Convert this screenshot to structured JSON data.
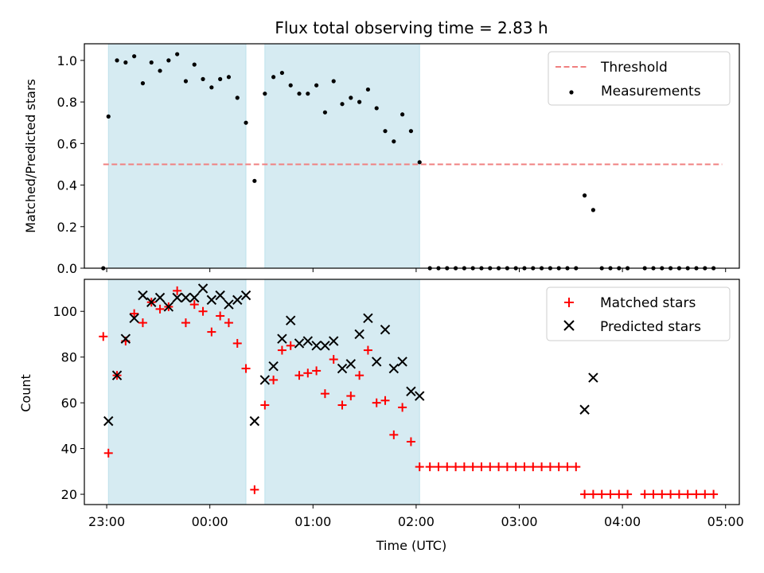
{
  "chart_data": [
    {
      "type": "scatter",
      "title": "Flux total observing time = 2.83 h",
      "xlabel": "",
      "ylabel": "Matched/Predicted stars",
      "ylim": [
        0,
        1.08
      ],
      "xlim": [
        "22:47",
        "05:08"
      ],
      "grid": false,
      "legend_position": "top-right",
      "colors": {
        "threshold": "#f08080",
        "measurements": "#000000",
        "shade": "#add8e6"
      },
      "shaded_intervals": [
        [
          "23:01",
          "00:21"
        ],
        [
          "00:32",
          "02:02"
        ]
      ],
      "threshold": {
        "name": "Threshold",
        "y": 0.5,
        "x_range": [
          "22:58",
          "04:58"
        ]
      },
      "series": [
        {
          "name": "Measurements",
          "points": [
            [
              "22:58",
              0.0
            ],
            [
              "23:01",
              0.73
            ],
            [
              "23:06",
              1.0
            ],
            [
              "23:11",
              0.99
            ],
            [
              "23:16",
              1.02
            ],
            [
              "23:21",
              0.89
            ],
            [
              "23:26",
              0.99
            ],
            [
              "23:31",
              0.95
            ],
            [
              "23:36",
              1.0
            ],
            [
              "23:41",
              1.03
            ],
            [
              "23:46",
              0.9
            ],
            [
              "23:51",
              0.98
            ],
            [
              "23:56",
              0.91
            ],
            [
              "00:01",
              0.87
            ],
            [
              "00:06",
              0.91
            ],
            [
              "00:11",
              0.92
            ],
            [
              "00:16",
              0.82
            ],
            [
              "00:21",
              0.7
            ],
            [
              "00:26",
              0.42
            ],
            [
              "00:32",
              0.84
            ],
            [
              "00:37",
              0.92
            ],
            [
              "00:42",
              0.94
            ],
            [
              "00:47",
              0.88
            ],
            [
              "00:52",
              0.84
            ],
            [
              "00:57",
              0.84
            ],
            [
              "01:02",
              0.88
            ],
            [
              "01:07",
              0.75
            ],
            [
              "01:12",
              0.9
            ],
            [
              "01:17",
              0.79
            ],
            [
              "01:22",
              0.82
            ],
            [
              "01:27",
              0.8
            ],
            [
              "01:32",
              0.86
            ],
            [
              "01:37",
              0.77
            ],
            [
              "01:42",
              0.66
            ],
            [
              "01:47",
              0.61
            ],
            [
              "01:52",
              0.74
            ],
            [
              "01:57",
              0.66
            ],
            [
              "02:02",
              0.51
            ],
            [
              "02:08",
              0.0
            ],
            [
              "02:13",
              0.0
            ],
            [
              "02:18",
              0.0
            ],
            [
              "02:23",
              0.0
            ],
            [
              "02:28",
              0.0
            ],
            [
              "02:33",
              0.0
            ],
            [
              "02:38",
              0.0
            ],
            [
              "02:43",
              0.0
            ],
            [
              "02:48",
              0.0
            ],
            [
              "02:53",
              0.0
            ],
            [
              "02:58",
              0.0
            ],
            [
              "03:03",
              0.0
            ],
            [
              "03:08",
              0.0
            ],
            [
              "03:13",
              0.0
            ],
            [
              "03:18",
              0.0
            ],
            [
              "03:23",
              0.0
            ],
            [
              "03:28",
              0.0
            ],
            [
              "03:33",
              0.0
            ],
            [
              "03:38",
              0.35
            ],
            [
              "03:43",
              0.28
            ],
            [
              "03:48",
              0.0
            ],
            [
              "03:53",
              0.0
            ],
            [
              "03:58",
              0.0
            ],
            [
              "04:03",
              0.0
            ],
            [
              "04:13",
              0.0
            ],
            [
              "04:18",
              0.0
            ],
            [
              "04:23",
              0.0
            ],
            [
              "04:28",
              0.0
            ],
            [
              "04:33",
              0.0
            ],
            [
              "04:38",
              0.0
            ],
            [
              "04:43",
              0.0
            ],
            [
              "04:48",
              0.0
            ],
            [
              "04:53",
              0.0
            ]
          ]
        }
      ],
      "x_ticks": [
        "23:00",
        "00:00",
        "01:00",
        "02:00",
        "03:00",
        "04:00",
        "05:00"
      ],
      "y_ticks": [
        "0.0",
        "0.2",
        "0.4",
        "0.6",
        "0.8",
        "1.0"
      ]
    },
    {
      "type": "scatter",
      "title": "",
      "xlabel": "Time (UTC)",
      "ylabel": "Count",
      "ylim": [
        15.5,
        114
      ],
      "xlim": [
        "22:47",
        "05:08"
      ],
      "grid": false,
      "legend_position": "top-right",
      "colors": {
        "matched": "#ff0000",
        "predicted": "#000000",
        "shade": "#add8e6"
      },
      "shaded_intervals": [
        [
          "23:01",
          "00:21"
        ],
        [
          "00:32",
          "02:02"
        ]
      ],
      "series": [
        {
          "name": "Matched stars",
          "marker": "plus",
          "points": [
            [
              "22:58",
              89
            ],
            [
              "23:01",
              38
            ],
            [
              "23:06",
              72
            ],
            [
              "23:11",
              87
            ],
            [
              "23:16",
              99
            ],
            [
              "23:21",
              95
            ],
            [
              "23:26",
              104
            ],
            [
              "23:31",
              101
            ],
            [
              "23:36",
              102
            ],
            [
              "23:41",
              109
            ],
            [
              "23:46",
              95
            ],
            [
              "23:51",
              103
            ],
            [
              "23:56",
              100
            ],
            [
              "00:01",
              91
            ],
            [
              "00:06",
              98
            ],
            [
              "00:11",
              95
            ],
            [
              "00:16",
              86
            ],
            [
              "00:21",
              75
            ],
            [
              "00:26",
              22
            ],
            [
              "00:32",
              59
            ],
            [
              "00:37",
              70
            ],
            [
              "00:42",
              83
            ],
            [
              "00:47",
              85
            ],
            [
              "00:52",
              72
            ],
            [
              "00:57",
              73
            ],
            [
              "01:02",
              74
            ],
            [
              "01:07",
              64
            ],
            [
              "01:12",
              79
            ],
            [
              "01:17",
              59
            ],
            [
              "01:22",
              63
            ],
            [
              "01:27",
              72
            ],
            [
              "01:32",
              83
            ],
            [
              "01:37",
              60
            ],
            [
              "01:42",
              61
            ],
            [
              "01:47",
              46
            ],
            [
              "01:52",
              58
            ],
            [
              "01:57",
              43
            ],
            [
              "02:02",
              32
            ],
            [
              "02:08",
              32
            ],
            [
              "02:13",
              32
            ],
            [
              "02:18",
              32
            ],
            [
              "02:23",
              32
            ],
            [
              "02:28",
              32
            ],
            [
              "02:33",
              32
            ],
            [
              "02:38",
              32
            ],
            [
              "02:43",
              32
            ],
            [
              "02:48",
              32
            ],
            [
              "02:53",
              32
            ],
            [
              "02:58",
              32
            ],
            [
              "03:03",
              32
            ],
            [
              "03:08",
              32
            ],
            [
              "03:13",
              32
            ],
            [
              "03:18",
              32
            ],
            [
              "03:23",
              32
            ],
            [
              "03:28",
              32
            ],
            [
              "03:33",
              32
            ],
            [
              "03:38",
              20
            ],
            [
              "03:43",
              20
            ],
            [
              "03:48",
              20
            ],
            [
              "03:53",
              20
            ],
            [
              "03:58",
              20
            ],
            [
              "04:03",
              20
            ],
            [
              "04:13",
              20
            ],
            [
              "04:18",
              20
            ],
            [
              "04:23",
              20
            ],
            [
              "04:28",
              20
            ],
            [
              "04:33",
              20
            ],
            [
              "04:38",
              20
            ],
            [
              "04:43",
              20
            ],
            [
              "04:48",
              20
            ],
            [
              "04:53",
              20
            ]
          ]
        },
        {
          "name": "Predicted stars",
          "marker": "x",
          "points": [
            [
              "23:01",
              52
            ],
            [
              "23:06",
              72
            ],
            [
              "23:11",
              88
            ],
            [
              "23:16",
              97
            ],
            [
              "23:21",
              107
            ],
            [
              "23:26",
              104
            ],
            [
              "23:31",
              106
            ],
            [
              "23:36",
              102
            ],
            [
              "23:41",
              106
            ],
            [
              "23:46",
              106
            ],
            [
              "23:51",
              106
            ],
            [
              "23:56",
              110
            ],
            [
              "00:01",
              105
            ],
            [
              "00:06",
              107
            ],
            [
              "00:11",
              103
            ],
            [
              "00:16",
              105
            ],
            [
              "00:21",
              107
            ],
            [
              "00:26",
              52
            ],
            [
              "00:32",
              70
            ],
            [
              "00:37",
              76
            ],
            [
              "00:42",
              88
            ],
            [
              "00:47",
              96
            ],
            [
              "00:52",
              86
            ],
            [
              "00:57",
              87
            ],
            [
              "01:02",
              85
            ],
            [
              "01:07",
              85
            ],
            [
              "01:12",
              87
            ],
            [
              "01:17",
              75
            ],
            [
              "01:22",
              77
            ],
            [
              "01:27",
              90
            ],
            [
              "01:32",
              97
            ],
            [
              "01:37",
              78
            ],
            [
              "01:42",
              92
            ],
            [
              "01:47",
              75
            ],
            [
              "01:52",
              78
            ],
            [
              "01:57",
              65
            ],
            [
              "02:02",
              63
            ],
            [
              "03:38",
              57
            ],
            [
              "03:43",
              71
            ]
          ]
        }
      ],
      "x_ticks": [
        "23:00",
        "00:00",
        "01:00",
        "02:00",
        "03:00",
        "04:00",
        "05:00"
      ],
      "y_ticks": [
        "20",
        "40",
        "60",
        "80",
        "100"
      ]
    }
  ]
}
